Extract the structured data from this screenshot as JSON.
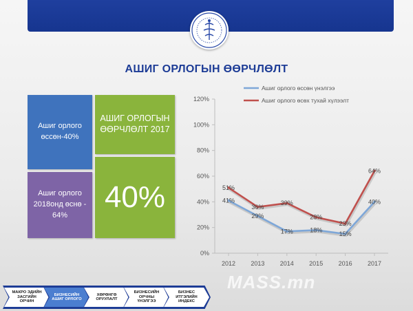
{
  "title": "АШИГ ОРЛОГЫН ӨӨРЧЛӨЛТ",
  "tiles": {
    "profit_growth": "Ашиг орлого өссөн-40%",
    "profit_forecast": "Ашиг орлого 2018онд өснө - 64%",
    "change_label": "АШИГ ОРЛОГЫН ӨӨРЧЛӨЛТ 2017",
    "change_value": "40%"
  },
  "breadcrumb": [
    {
      "label": "МАКРО ЭДИЙН ЗАСГИЙН ОРЧИН",
      "active": false
    },
    {
      "label": "БИЗНЕСИЙН АШИГ ОРЛОГО",
      "active": true
    },
    {
      "label": "ХӨРӨНГӨ ОРУУЛАЛТ",
      "active": false
    },
    {
      "label": "БИЗНЕСИЙН ОРЧНЫ ҮНЭЛГЭЭ",
      "active": false
    },
    {
      "label": "БИЗНЕС ИТГЭЛИЙН ИНДЕКС",
      "active": false
    }
  ],
  "watermark": "MASS.mn",
  "colors": {
    "header": "#1d3c96",
    "tile_blue": "#3f73bd",
    "tile_purple": "#7e64a6",
    "tile_green": "#8ab43c",
    "series_1": "#7ea7d8",
    "series_2": "#c0504d"
  },
  "chart_data": {
    "type": "line",
    "x": [
      "2012",
      "2013",
      "2014",
      "2015",
      "2016",
      "2017"
    ],
    "ylim": [
      0,
      120
    ],
    "yticks": [
      "0%",
      "20%",
      "40%",
      "60%",
      "80%",
      "100%",
      "120%"
    ],
    "grid": false,
    "legend": "top",
    "series": [
      {
        "name": "Ашиг орлого өссөн үнэлгээ",
        "values": [
          41,
          29,
          17,
          18,
          15,
          40
        ],
        "labels": [
          "41%",
          "29%",
          "17%",
          "18%",
          "15%",
          "40%"
        ]
      },
      {
        "name": "Ашиг орлого өсөх тухай хүлээлт",
        "values": [
          51,
          36,
          39,
          28,
          23,
          64
        ],
        "labels": [
          "51%",
          "36%",
          "39%",
          "28%",
          "23%",
          "64%"
        ]
      }
    ]
  }
}
